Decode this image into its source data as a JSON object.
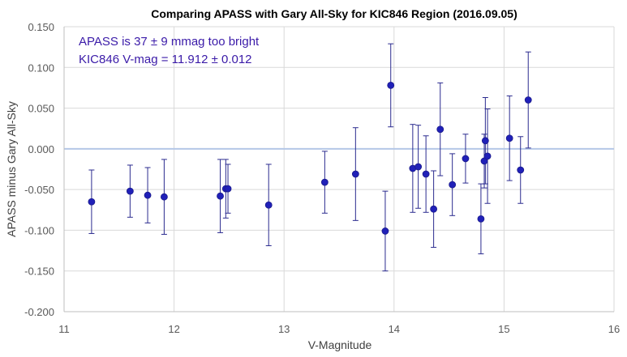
{
  "chart_data": {
    "type": "scatter",
    "title": "Comparing APASS with Gary All-Sky for KIC846 Region (2016.09.05)",
    "xlabel": "V-Magnitude",
    "ylabel": "APASS minus Gary All-Sky",
    "xlim": [
      11,
      16
    ],
    "ylim": [
      -0.2,
      0.15
    ],
    "x_ticks": [
      "11",
      "12",
      "13",
      "14",
      "15",
      "16"
    ],
    "y_ticks": [
      "0.150",
      "0.100",
      "0.050",
      "0.000",
      "-0.050",
      "-0.100",
      "-0.150",
      "-0.200"
    ],
    "grid": true,
    "reference_line_y": 0.0,
    "annotations": [
      "APASS is 37 ± 9 mmag too bright",
      "KIC846 V-mag = 11.912 ± 0.012"
    ],
    "colors": {
      "points": "#2020b8",
      "errorbars": "#2b2b8f",
      "annotation_text": "#3a1aa8",
      "reference_line": "#b4c7e7",
      "grid": "#d9d9d9"
    },
    "points": [
      {
        "x": 11.25,
        "y": -0.065,
        "err": 0.039
      },
      {
        "x": 11.6,
        "y": -0.052,
        "err": 0.032
      },
      {
        "x": 11.76,
        "y": -0.057,
        "err": 0.034
      },
      {
        "x": 11.91,
        "y": -0.059,
        "err": 0.046
      },
      {
        "x": 12.42,
        "y": -0.058,
        "err": 0.045
      },
      {
        "x": 12.47,
        "y": -0.049,
        "err": 0.036
      },
      {
        "x": 12.49,
        "y": -0.049,
        "err": 0.03
      },
      {
        "x": 12.86,
        "y": -0.069,
        "err": 0.05
      },
      {
        "x": 13.37,
        "y": -0.041,
        "err": 0.038
      },
      {
        "x": 13.65,
        "y": -0.031,
        "err": 0.057
      },
      {
        "x": 13.92,
        "y": -0.101,
        "err": 0.049
      },
      {
        "x": 13.97,
        "y": 0.078,
        "err": 0.051
      },
      {
        "x": 14.17,
        "y": -0.024,
        "err": 0.054
      },
      {
        "x": 14.22,
        "y": -0.022,
        "err": 0.051
      },
      {
        "x": 14.29,
        "y": -0.031,
        "err": 0.047
      },
      {
        "x": 14.36,
        "y": -0.074,
        "err": 0.047
      },
      {
        "x": 14.42,
        "y": 0.024,
        "err": 0.057
      },
      {
        "x": 14.53,
        "y": -0.044,
        "err": 0.038
      },
      {
        "x": 14.65,
        "y": -0.012,
        "err": 0.03
      },
      {
        "x": 14.79,
        "y": -0.086,
        "err": 0.043
      },
      {
        "x": 14.82,
        "y": -0.015,
        "err": 0.033
      },
      {
        "x": 14.83,
        "y": 0.01,
        "err": 0.053
      },
      {
        "x": 14.85,
        "y": -0.009,
        "err": 0.058
      },
      {
        "x": 15.05,
        "y": 0.013,
        "err": 0.052
      },
      {
        "x": 15.15,
        "y": -0.026,
        "err": 0.041
      },
      {
        "x": 15.22,
        "y": 0.06,
        "err": 0.059
      }
    ]
  }
}
